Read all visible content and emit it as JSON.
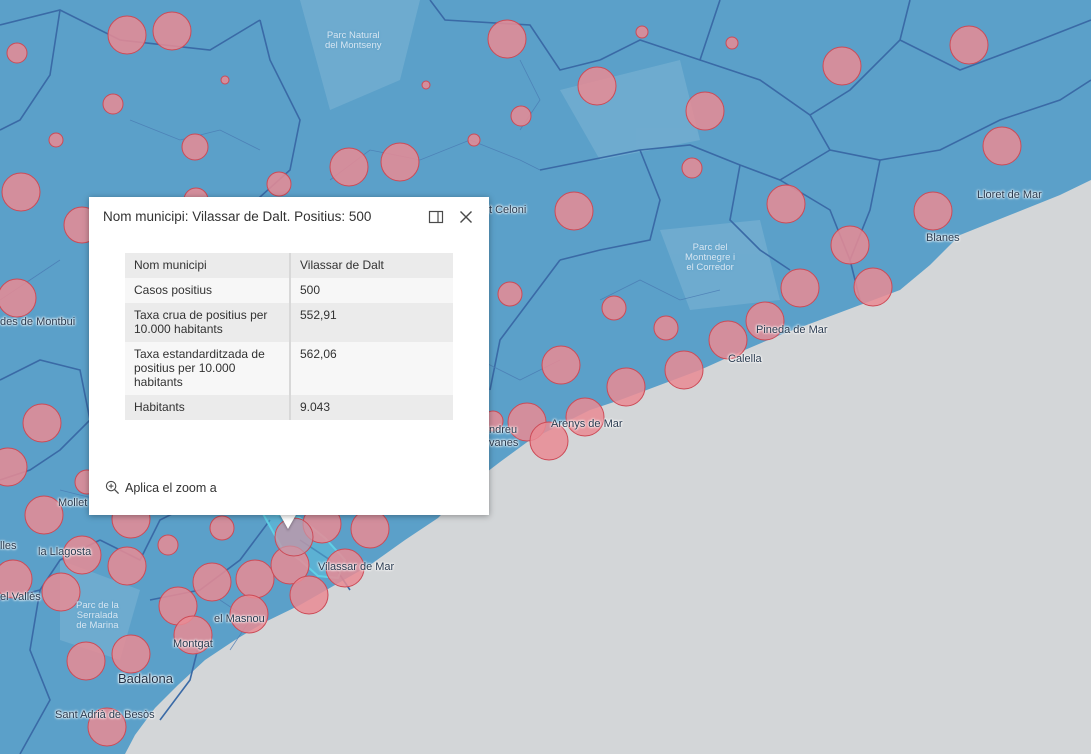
{
  "colors": {
    "land": "#5ba0c9",
    "sea": "#d3d6d8",
    "boundary": "#3a6aa6",
    "circle_fill": "#e98b94",
    "circle_stroke": "#cc4a56",
    "selected": "#5fd0e6"
  },
  "popup": {
    "title": "Nom municipi: Vilassar de Dalt. Positius: 500",
    "rows": [
      {
        "key": "Nom municipi",
        "value": "Vilassar de Dalt"
      },
      {
        "key": "Casos positius",
        "value": "500"
      },
      {
        "key": "Taxa crua de positius per 10.000 habitants",
        "value": "552,91"
      },
      {
        "key": "Taxa estandarditzada de positius per 10.000 habitants",
        "value": "562,06"
      },
      {
        "key": "Habitants",
        "value": "9.043"
      }
    ],
    "zoom_label": "Aplica el zoom a",
    "dock_icon": "dock-icon",
    "close_icon": "close-icon",
    "zoom_icon": "zoom-in-icon"
  },
  "places": [
    {
      "label": "Lloret de Mar"
    },
    {
      "label": "Blanes"
    },
    {
      "label": "t Celoni"
    },
    {
      "label": "Pineda de Mar"
    },
    {
      "label": "Calella"
    },
    {
      "label": "Arenys de Mar"
    },
    {
      "label": "ndreu"
    },
    {
      "label": "vanes"
    },
    {
      "label": "des de Montbui"
    },
    {
      "label": "Mollet"
    },
    {
      "label": "lles"
    },
    {
      "label": "la Llagosta"
    },
    {
      "label": "el Vallès"
    },
    {
      "label": "Vilassar de Mar"
    },
    {
      "label": "el Masnou"
    },
    {
      "label": "Montgat"
    },
    {
      "label": "Badalona"
    },
    {
      "label": "Sant Adrià de Besòs"
    }
  ],
  "parks": [
    {
      "lines": [
        "Parc Natural",
        "del Montseny"
      ]
    },
    {
      "lines": [
        "Parc del",
        "Montnegre i",
        "el Corredor"
      ]
    },
    {
      "lines": [
        "Parc de la",
        "Serralada",
        "de Marina"
      ]
    }
  ],
  "circle_count": 96
}
